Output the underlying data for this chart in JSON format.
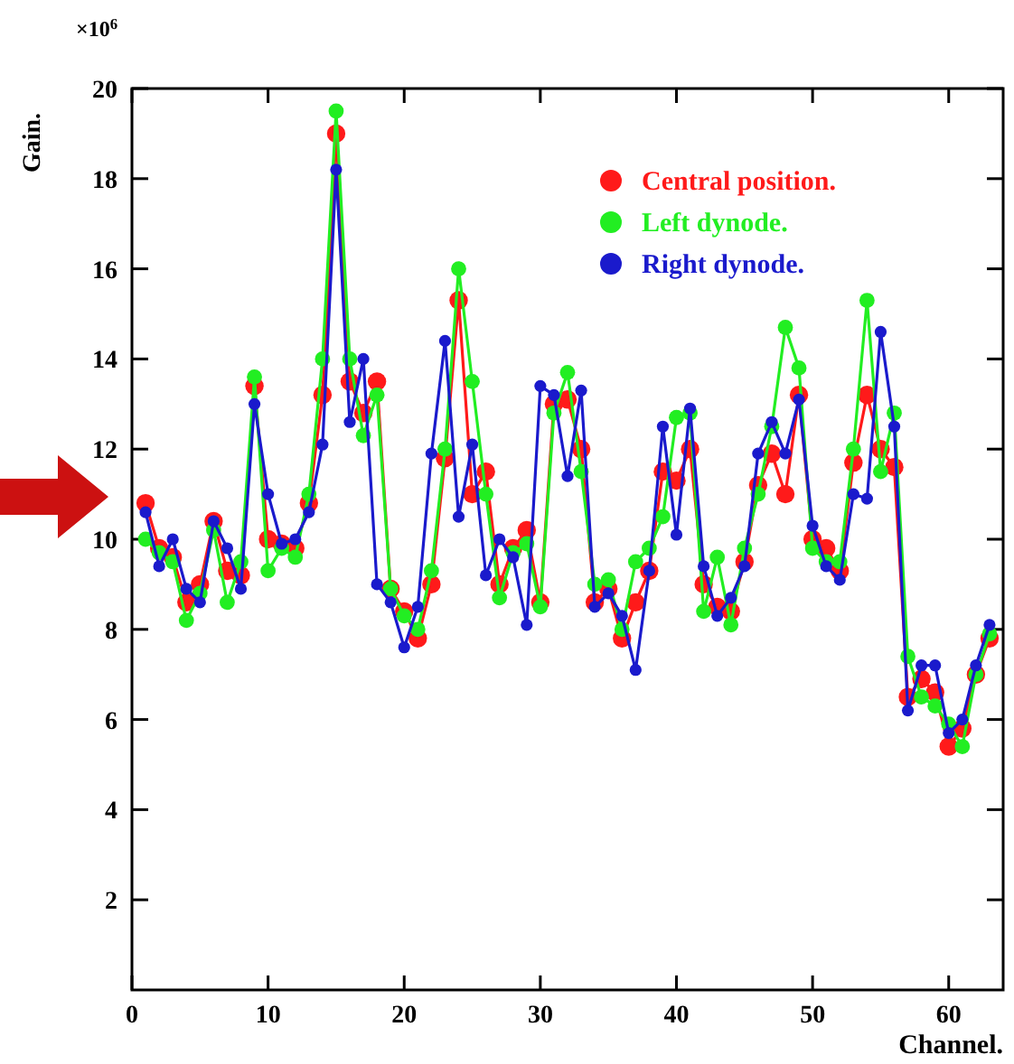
{
  "chart_data": {
    "type": "line",
    "xlabel": "Channel.",
    "ylabel": "Gain.",
    "annotations": [
      "×10$^{6}$"
    ],
    "x": [
      1,
      2,
      3,
      4,
      5,
      6,
      7,
      8,
      9,
      10,
      11,
      12,
      13,
      14,
      15,
      16,
      17,
      18,
      19,
      20,
      21,
      22,
      23,
      24,
      25,
      26,
      27,
      28,
      29,
      30,
      31,
      32,
      33,
      34,
      35,
      36,
      37,
      38,
      39,
      40,
      41,
      42,
      43,
      44,
      45,
      46,
      47,
      48,
      49,
      50,
      51,
      52,
      53,
      54,
      55,
      56,
      57,
      58,
      59,
      60,
      61,
      62,
      63
    ],
    "series": [
      {
        "name": "Central position.",
        "color": "#ff1a1a",
        "values": [
          10.8,
          9.8,
          9.6,
          8.6,
          9.0,
          10.4,
          9.3,
          9.2,
          13.4,
          10.0,
          9.9,
          9.8,
          10.8,
          13.2,
          19.0,
          13.5,
          12.8,
          13.5,
          8.9,
          8.4,
          7.8,
          9.0,
          11.8,
          15.3,
          11.0,
          11.5,
          9.0,
          9.8,
          10.2,
          8.6,
          13.0,
          13.1,
          12.0,
          8.6,
          8.9,
          7.8,
          8.6,
          9.3,
          11.5,
          11.3,
          12.0,
          9.0,
          8.5,
          8.4,
          9.5,
          11.2,
          11.9,
          11.0,
          13.2,
          10.0,
          9.8,
          9.3,
          11.7,
          13.2,
          12.0,
          11.6,
          6.5,
          6.9,
          6.6,
          5.4,
          5.8,
          7.0,
          7.8
        ]
      },
      {
        "name": "Left dynode.",
        "color": "#22ee22",
        "values": [
          10.0,
          9.7,
          9.5,
          8.2,
          8.8,
          10.2,
          8.6,
          9.5,
          13.6,
          9.3,
          9.8,
          9.6,
          11.0,
          14.0,
          19.5,
          14.0,
          12.3,
          13.2,
          8.9,
          8.3,
          8.0,
          9.3,
          12.0,
          16.0,
          13.5,
          11.0,
          8.7,
          9.7,
          9.9,
          8.5,
          12.8,
          13.7,
          11.5,
          9.0,
          9.1,
          8.0,
          9.5,
          9.8,
          10.5,
          12.7,
          12.8,
          8.4,
          9.6,
          8.1,
          9.8,
          11.0,
          12.5,
          14.7,
          13.8,
          9.8,
          9.5,
          9.5,
          12.0,
          15.3,
          11.5,
          12.8,
          7.4,
          6.5,
          6.3,
          5.9,
          5.4,
          7.0,
          7.9
        ]
      },
      {
        "name": "Right dynode.",
        "color": "#1a1acc",
        "values": [
          10.6,
          9.4,
          10.0,
          8.9,
          8.6,
          10.4,
          9.8,
          8.9,
          13.0,
          11.0,
          9.9,
          10.0,
          10.6,
          12.1,
          18.2,
          12.6,
          14.0,
          9.0,
          8.6,
          7.6,
          8.5,
          11.9,
          14.4,
          10.5,
          12.1,
          9.2,
          10.0,
          9.6,
          8.1,
          13.4,
          13.2,
          11.4,
          13.3,
          8.5,
          8.8,
          8.3,
          7.1,
          9.3,
          12.5,
          10.1,
          12.9,
          9.4,
          8.3,
          8.7,
          9.4,
          11.9,
          12.6,
          11.9,
          13.1,
          10.3,
          9.4,
          9.1,
          11.0,
          10.9,
          14.6,
          12.5,
          6.2,
          7.2,
          7.2,
          5.7,
          6.0,
          7.2,
          8.1
        ]
      }
    ],
    "xlim": [
      0,
      64
    ],
    "xticks": [
      0,
      10,
      20,
      30,
      40,
      50,
      60
    ],
    "ylim": [
      0,
      20
    ],
    "yticks": [
      2,
      4,
      6,
      8,
      10,
      12,
      14,
      16,
      18,
      20
    ],
    "grid": false,
    "legend": "top right",
    "marker": "circle",
    "line_style": "solid"
  }
}
